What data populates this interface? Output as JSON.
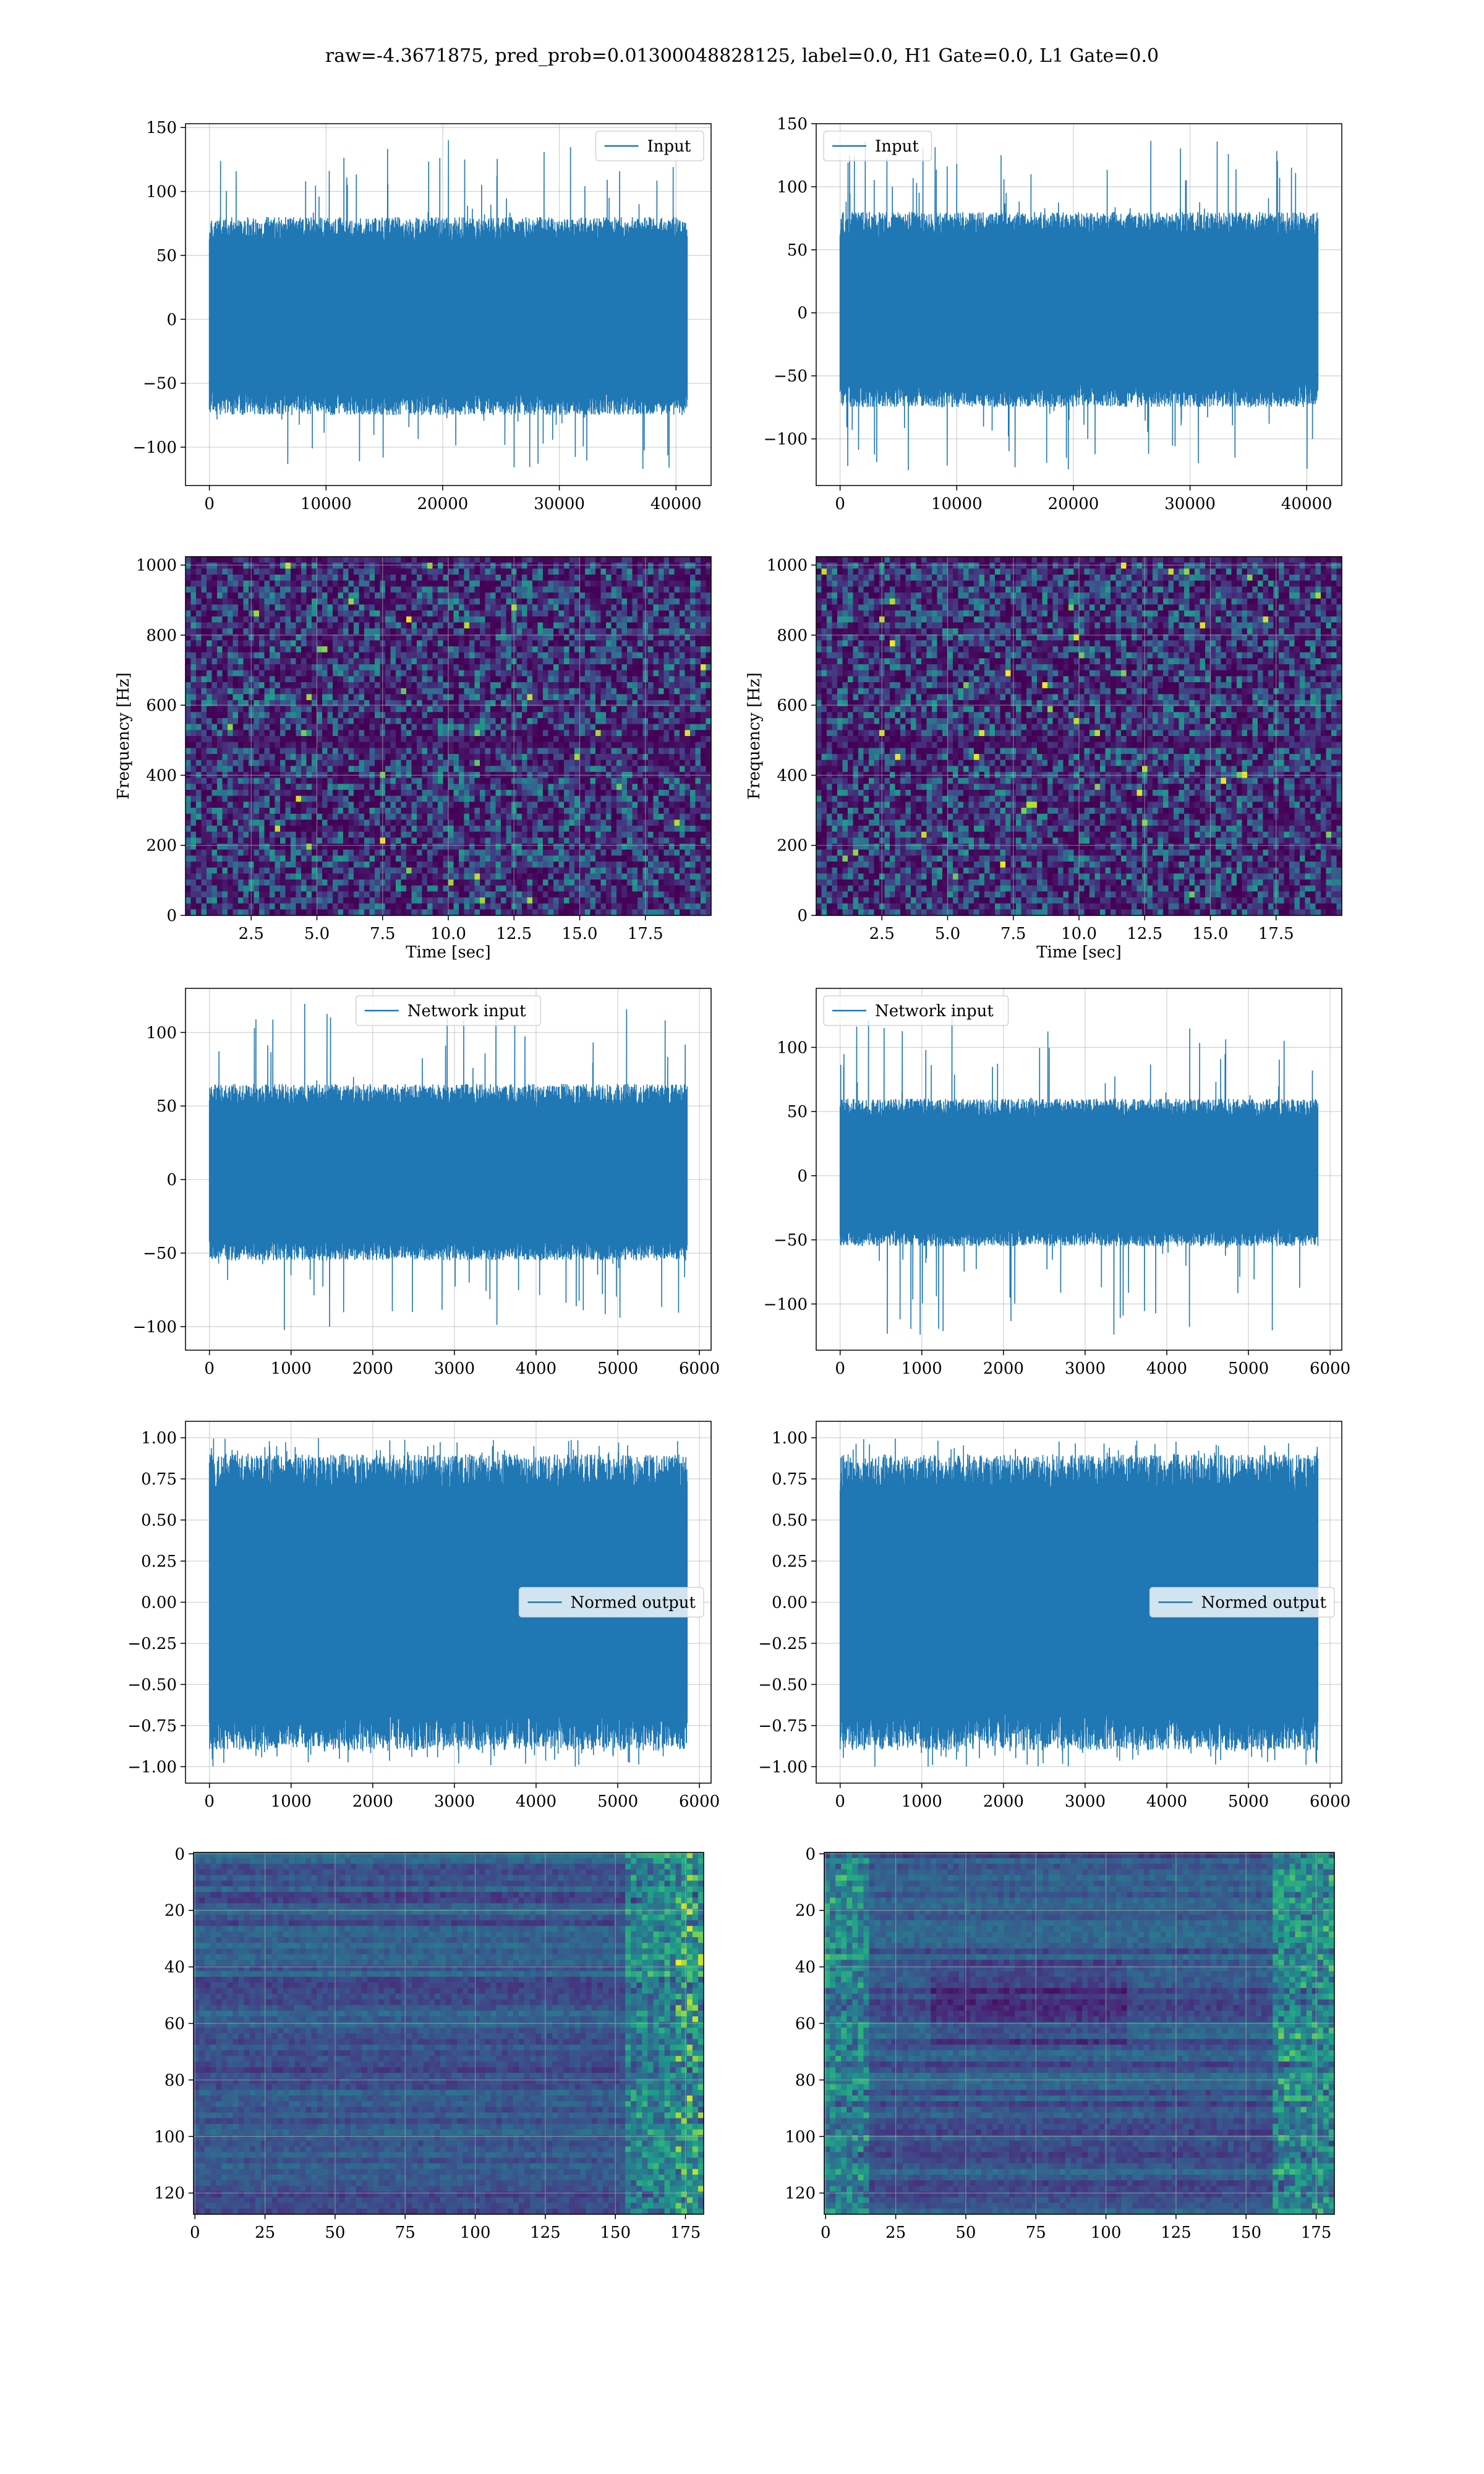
{
  "figure": {
    "suptitle": "raw=-4.3671875, pred_prob=0.01300048828125, label=0.0, H1 Gate=0.0, L1 Gate=0.0"
  },
  "colors": {
    "line": "#1f77b4",
    "grid": "#b0b0b0",
    "viridis_low": "#440154",
    "viridis_mid": "#3b528b",
    "viridis_teal": "#21918c",
    "viridis_green": "#5ec962",
    "viridis_high": "#fde725"
  },
  "chart_data": [
    {
      "id": "ax1",
      "type": "line",
      "series": [
        {
          "name": "Input",
          "x_range": [
            0,
            40960
          ],
          "y_envelope": [
            -118,
            141
          ],
          "typical_range": [
            -75,
            80
          ]
        }
      ],
      "xlim": [
        -2048,
        43008
      ],
      "ylim": [
        -130,
        153
      ],
      "xticks": [
        0,
        10000,
        20000,
        30000,
        40000
      ],
      "xtick_labels": [
        "0",
        "10000",
        "20000",
        "30000",
        "40000"
      ],
      "yticks": [
        -100,
        -50,
        0,
        50,
        100,
        150
      ],
      "ytick_labels": [
        "−100",
        "−50",
        "0",
        "50",
        "100",
        "150"
      ],
      "xlabel": "",
      "ylabel": "",
      "legend_position": "upper right",
      "grid": true
    },
    {
      "id": "ax2",
      "type": "line",
      "series": [
        {
          "name": "Input",
          "x_range": [
            0,
            40960
          ],
          "y_envelope": [
            -125,
            137
          ],
          "typical_range": [
            -75,
            80
          ]
        }
      ],
      "xlim": [
        -2048,
        43008
      ],
      "ylim": [
        -137,
        150
      ],
      "xticks": [
        0,
        10000,
        20000,
        30000,
        40000
      ],
      "xtick_labels": [
        "0",
        "10000",
        "20000",
        "30000",
        "40000"
      ],
      "yticks": [
        -100,
        -50,
        0,
        50,
        100,
        150
      ],
      "ytick_labels": [
        "−100",
        "−50",
        "0",
        "50",
        "100",
        "150"
      ],
      "xlabel": "",
      "ylabel": "",
      "legend_position": "upper left",
      "grid": true
    },
    {
      "id": "ax3",
      "type": "heatmap",
      "xlim": [
        0,
        20
      ],
      "ylim": [
        0,
        1024
      ],
      "xticks": [
        2.5,
        5.0,
        7.5,
        10.0,
        12.5,
        15.0,
        17.5
      ],
      "xtick_labels": [
        "2.5",
        "5.0",
        "7.5",
        "10.0",
        "12.5",
        "15.0",
        "17.5"
      ],
      "yticks": [
        0,
        200,
        400,
        600,
        800,
        1000
      ],
      "ytick_labels": [
        "0",
        "200",
        "400",
        "600",
        "800",
        "1000"
      ],
      "xlabel": "Time [sec]",
      "ylabel": "Frequency [Hz]",
      "grid": true
    },
    {
      "id": "ax4",
      "type": "heatmap",
      "xlim": [
        0,
        20
      ],
      "ylim": [
        0,
        1024
      ],
      "xticks": [
        2.5,
        5.0,
        7.5,
        10.0,
        12.5,
        15.0,
        17.5
      ],
      "xtick_labels": [
        "2.5",
        "5.0",
        "7.5",
        "10.0",
        "12.5",
        "15.0",
        "17.5"
      ],
      "yticks": [
        0,
        200,
        400,
        600,
        800,
        1000
      ],
      "ytick_labels": [
        "0",
        "200",
        "400",
        "600",
        "800",
        "1000"
      ],
      "xlabel": "Time [sec]",
      "ylabel": "Frequency [Hz]",
      "grid": true
    },
    {
      "id": "ax5",
      "type": "line",
      "series": [
        {
          "name": "Network input",
          "x_range": [
            0,
            5850
          ],
          "y_envelope": [
            -104,
            120
          ],
          "typical_range": [
            -55,
            65
          ]
        }
      ],
      "xlim": [
        -293,
        6143
      ],
      "ylim": [
        -116,
        130
      ],
      "xticks": [
        0,
        1000,
        2000,
        3000,
        4000,
        5000,
        6000
      ],
      "xtick_labels": [
        "0",
        "1000",
        "2000",
        "3000",
        "4000",
        "5000",
        "6000"
      ],
      "yticks": [
        -100,
        -50,
        0,
        50,
        100
      ],
      "ytick_labels": [
        "−100",
        "−50",
        "0",
        "50",
        "100"
      ],
      "xlabel": "",
      "ylabel": "",
      "legend_position": "upper center",
      "grid": true
    },
    {
      "id": "ax6",
      "type": "line",
      "series": [
        {
          "name": "Network input",
          "x_range": [
            0,
            5850
          ],
          "y_envelope": [
            -124,
            131
          ],
          "typical_range": [
            -55,
            60
          ]
        }
      ],
      "xlim": [
        -293,
        6143
      ],
      "ylim": [
        -136,
        146
      ],
      "xticks": [
        0,
        1000,
        2000,
        3000,
        4000,
        5000,
        6000
      ],
      "xtick_labels": [
        "0",
        "1000",
        "2000",
        "3000",
        "4000",
        "5000",
        "6000"
      ],
      "yticks": [
        -100,
        -50,
        0,
        50,
        100
      ],
      "ytick_labels": [
        "−100",
        "−50",
        "0",
        "50",
        "100"
      ],
      "xlabel": "",
      "ylabel": "",
      "legend_position": "upper left",
      "grid": true
    },
    {
      "id": "ax7",
      "type": "line",
      "series": [
        {
          "name": "Normed output",
          "x_range": [
            0,
            5850
          ],
          "y_envelope": [
            -1.0,
            1.0
          ],
          "typical_range": [
            -0.9,
            0.9
          ]
        }
      ],
      "xlim": [
        -293,
        6143
      ],
      "ylim": [
        -1.1,
        1.1
      ],
      "xticks": [
        0,
        1000,
        2000,
        3000,
        4000,
        5000,
        6000
      ],
      "xtick_labels": [
        "0",
        "1000",
        "2000",
        "3000",
        "4000",
        "5000",
        "6000"
      ],
      "yticks": [
        -1.0,
        -0.75,
        -0.5,
        -0.25,
        0.0,
        0.25,
        0.5,
        0.75,
        1.0
      ],
      "ytick_labels": [
        "−1.00",
        "−0.75",
        "−0.50",
        "−0.25",
        "0.00",
        "0.25",
        "0.50",
        "0.75",
        "1.00"
      ],
      "xlabel": "",
      "ylabel": "",
      "legend_position": "center right",
      "grid": true
    },
    {
      "id": "ax8",
      "type": "line",
      "series": [
        {
          "name": "Normed output",
          "x_range": [
            0,
            5850
          ],
          "y_envelope": [
            -1.0,
            1.0
          ],
          "typical_range": [
            -0.9,
            0.9
          ]
        }
      ],
      "xlim": [
        -293,
        6143
      ],
      "ylim": [
        -1.1,
        1.1
      ],
      "xticks": [
        0,
        1000,
        2000,
        3000,
        4000,
        5000,
        6000
      ],
      "xtick_labels": [
        "0",
        "1000",
        "2000",
        "3000",
        "4000",
        "5000",
        "6000"
      ],
      "yticks": [
        -1.0,
        -0.75,
        -0.5,
        -0.25,
        0.0,
        0.25,
        0.5,
        0.75,
        1.0
      ],
      "ytick_labels": [
        "−1.00",
        "−0.75",
        "−0.50",
        "−0.25",
        "0.00",
        "0.25",
        "0.50",
        "0.75",
        "1.00"
      ],
      "xlabel": "",
      "ylabel": "",
      "legend_position": "center right",
      "grid": true
    },
    {
      "id": "ax9",
      "type": "heatmap",
      "shape": [
        128,
        182
      ],
      "xlim": [
        -0.5,
        181.5
      ],
      "ylim": [
        127.5,
        -0.5
      ],
      "xticks": [
        0,
        25,
        50,
        75,
        100,
        125,
        150,
        175
      ],
      "xtick_labels": [
        "0",
        "25",
        "50",
        "75",
        "100",
        "125",
        "150",
        "175"
      ],
      "yticks": [
        0,
        20,
        40,
        60,
        80,
        100,
        120
      ],
      "ytick_labels": [
        "0",
        "20",
        "40",
        "60",
        "80",
        "100",
        "120"
      ],
      "xlabel": "",
      "ylabel": "",
      "grid": true
    },
    {
      "id": "ax10",
      "type": "heatmap",
      "shape": [
        128,
        182
      ],
      "xlim": [
        -0.5,
        181.5
      ],
      "ylim": [
        127.5,
        -0.5
      ],
      "xticks": [
        0,
        25,
        50,
        75,
        100,
        125,
        150,
        175
      ],
      "xtick_labels": [
        "0",
        "25",
        "50",
        "75",
        "100",
        "125",
        "150",
        "175"
      ],
      "yticks": [
        0,
        20,
        40,
        60,
        80,
        100,
        120
      ],
      "ytick_labels": [
        "0",
        "20",
        "40",
        "60",
        "80",
        "100",
        "120"
      ],
      "xlabel": "",
      "ylabel": "",
      "grid": true
    }
  ]
}
